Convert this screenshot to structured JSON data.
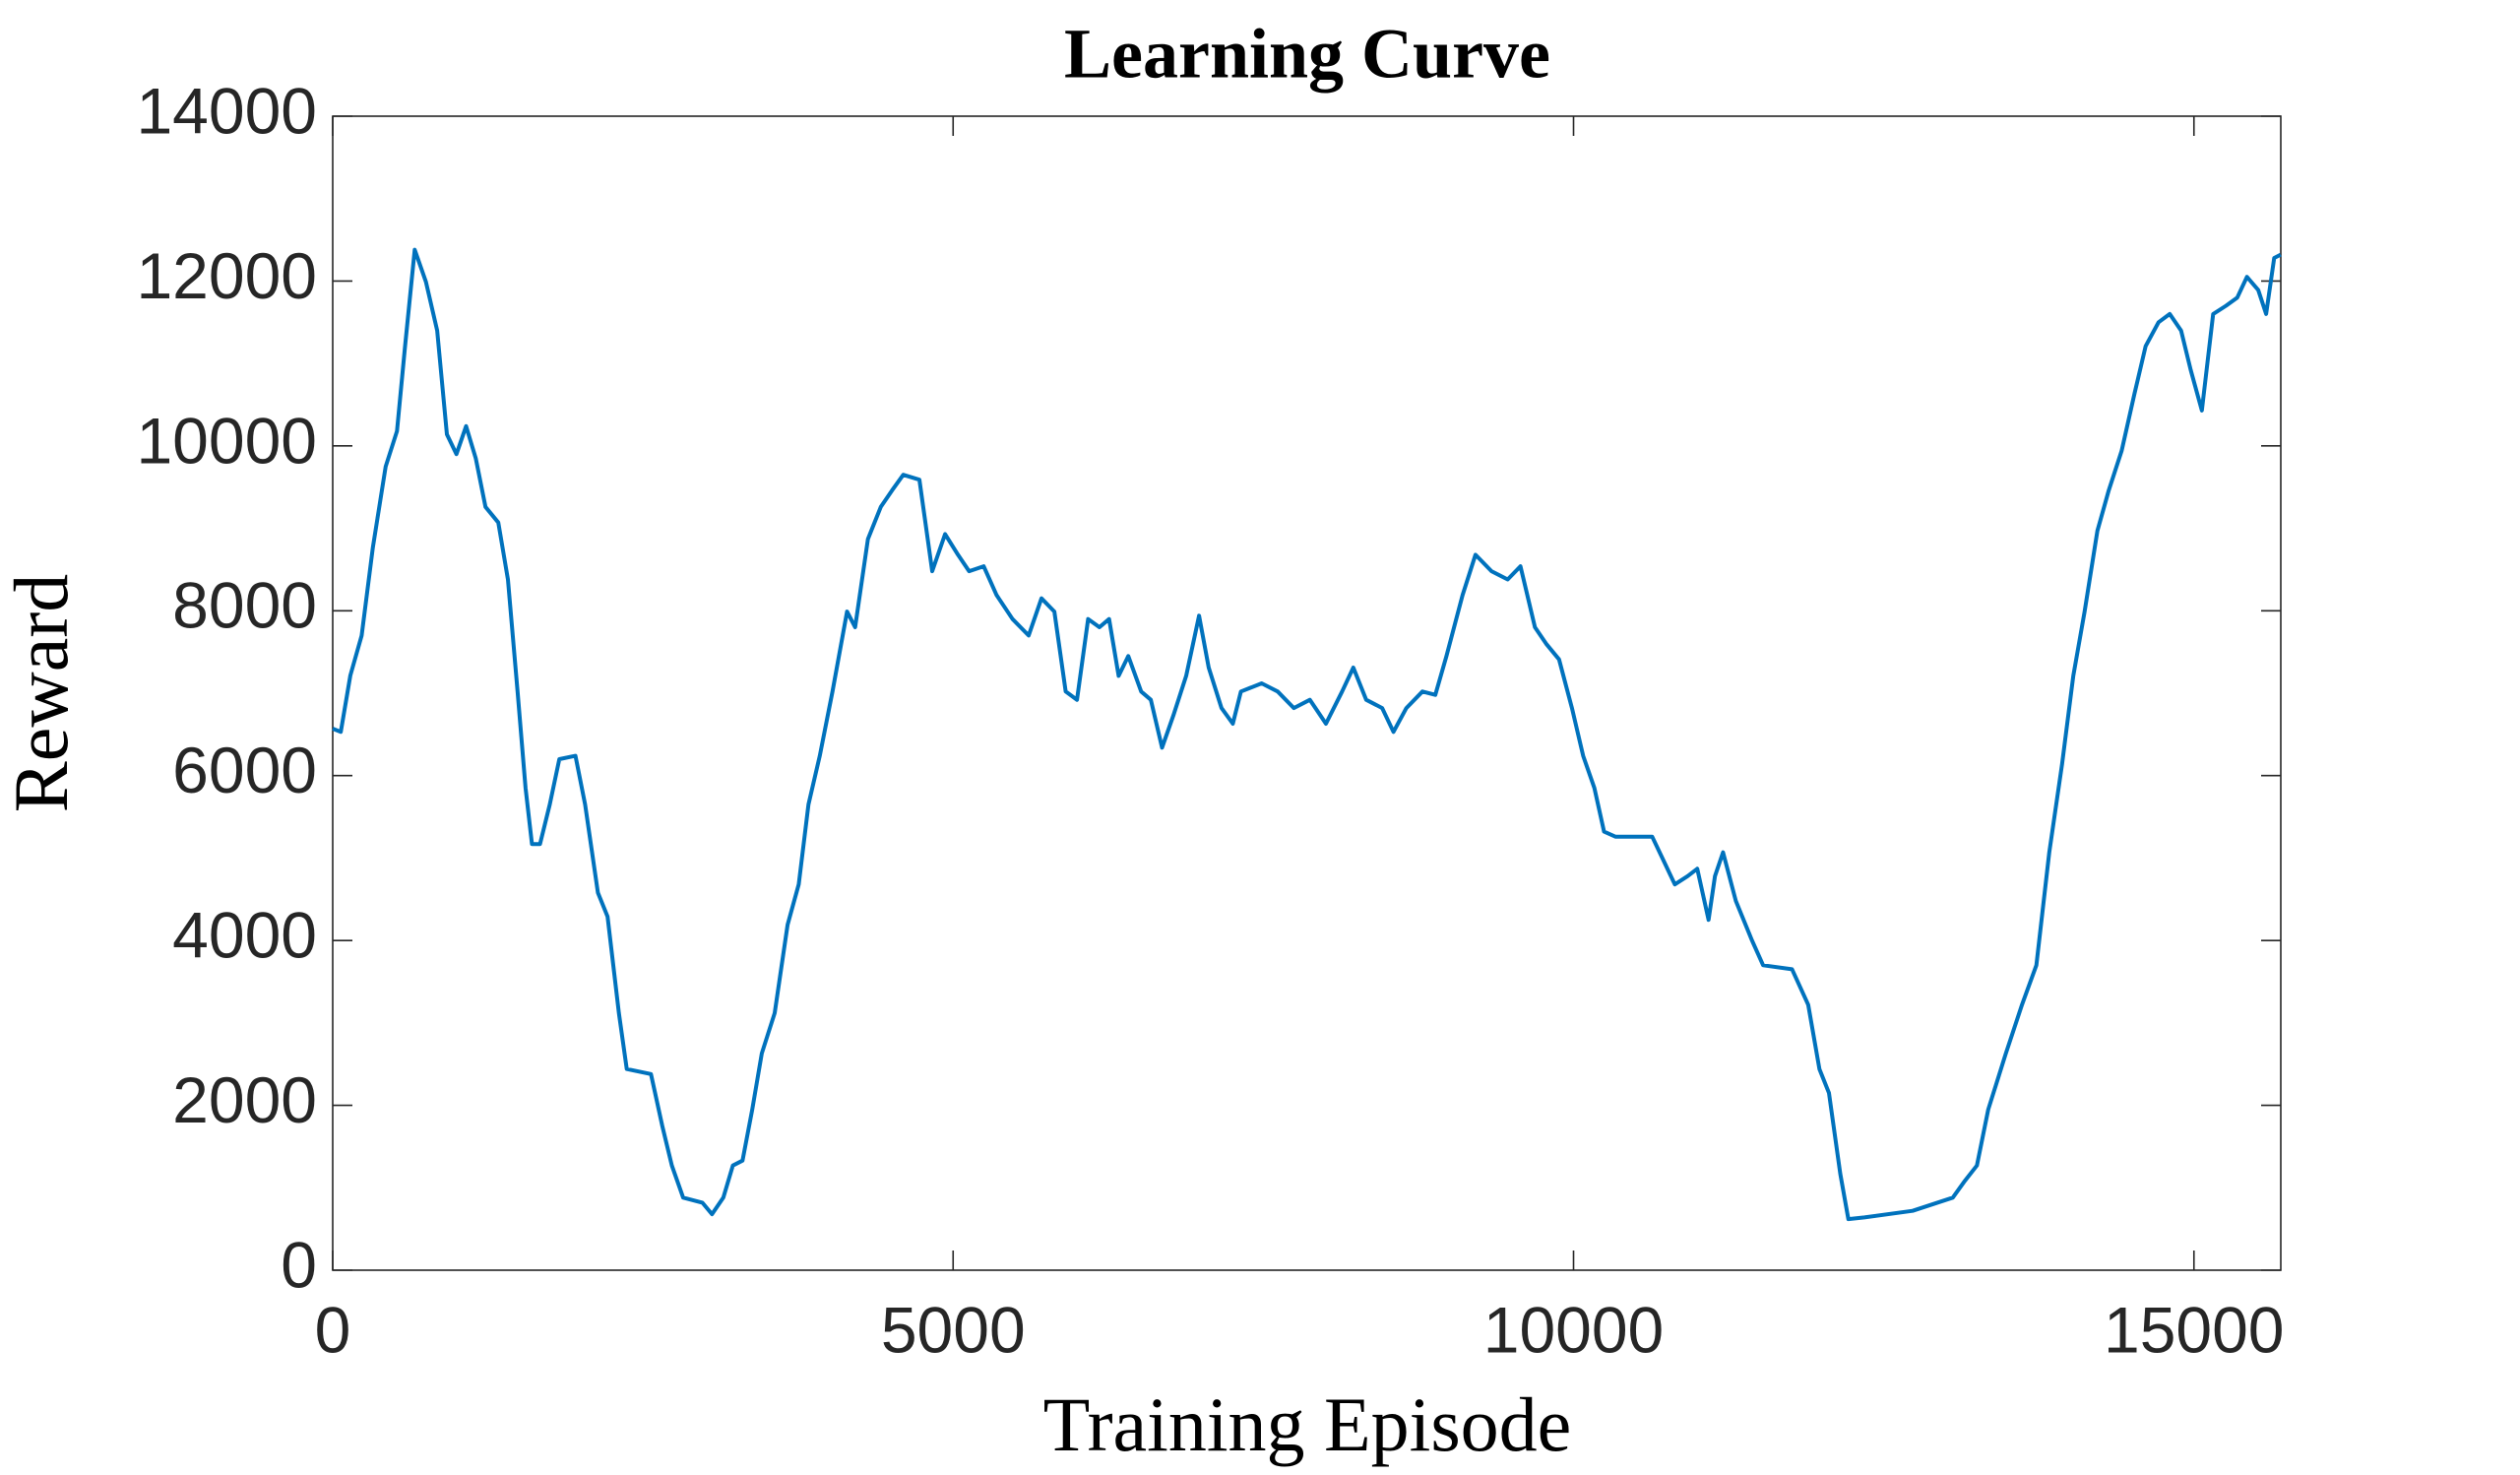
{
  "chart_data": {
    "type": "line",
    "title": "Learning Curve",
    "xlabel": "Training Episode",
    "ylabel": "Reward",
    "color": "#0072bd",
    "x": [
      0,
      65,
      142,
      233,
      324,
      427,
      518,
      583,
      661,
      751,
      842,
      920,
      997,
      1075,
      1153,
      1231,
      1334,
      1412,
      1490,
      1554,
      1606,
      1671,
      1749,
      1826,
      1956,
      2034,
      2137,
      2215,
      2306,
      2370,
      2565,
      2655,
      2733,
      2824,
      2979,
      3057,
      3148,
      3225,
      3303,
      3381,
      3458,
      3562,
      3666,
      3756,
      3834,
      3925,
      4028,
      4145,
      4210,
      4313,
      4417,
      4508,
      4598,
      4728,
      4831,
      4935,
      5039,
      5129,
      5246,
      5350,
      5479,
      5609,
      5712,
      5816,
      5907,
      5998,
      6088,
      6179,
      6257,
      6334,
      6412,
      6516,
      6593,
      6684,
      6775,
      6878,
      6982,
      7060,
      7163,
      7254,
      7319,
      7487,
      7616,
      7746,
      7875,
      8005,
      8135,
      8225,
      8329,
      8458,
      8549,
      8653,
      8782,
      8886,
      8976,
      9106,
      9210,
      9339,
      9469,
      9572,
      9689,
      9779,
      9883,
      9987,
      10078,
      10168,
      10246,
      10337,
      10466,
      10634,
      10725,
      10816,
      10919,
      10997,
      11088,
      11140,
      11205,
      11308,
      11438,
      11528,
      11761,
      11891,
      11982,
      12059,
      12150,
      12215,
      12344,
      12733,
      13057,
      13147,
      13251,
      13342,
      13484,
      13614,
      13730,
      13834,
      13937,
      14028,
      14119,
      14222,
      14313,
      14417,
      14520,
      14611,
      14715,
      14805,
      14896,
      14974,
      15064,
      15155,
      15259,
      15349,
      15427,
      15518,
      15582,
      15647,
      15699
    ],
    "values": [
      6570,
      6530,
      7215,
      7700,
      8770,
      9750,
      10180,
      11210,
      12380,
      11990,
      11400,
      10140,
      9900,
      10240,
      9850,
      9260,
      9070,
      8380,
      7020,
      5850,
      5170,
      5170,
      5650,
      6200,
      6240,
      5650,
      4580,
      4290,
      3120,
      2440,
      2380,
      1755,
      1270,
      880,
      820,
      680,
      880,
      1270,
      1330,
      1950,
      2630,
      3120,
      4190,
      4680,
      5650,
      6240,
      7020,
      7990,
      7800,
      8870,
      9260,
      9460,
      9650,
      9590,
      8480,
      8930,
      8680,
      8480,
      8540,
      8190,
      7900,
      7700,
      8150,
      7990,
      7020,
      6920,
      7900,
      7800,
      7900,
      7210,
      7450,
      7020,
      6920,
      6340,
      6730,
      7210,
      7940,
      7310,
      6820,
      6630,
      7020,
      7120,
      7020,
      6820,
      6920,
      6630,
      7020,
      7310,
      6920,
      6820,
      6530,
      6820,
      7020,
      6980,
      7450,
      8190,
      8680,
      8480,
      8380,
      8540,
      7800,
      7600,
      7410,
      6820,
      6240,
      5850,
      5320,
      5260,
      5260,
      5260,
      4970,
      4680,
      4780,
      4870,
      4250,
      4780,
      5070,
      4480,
      4000,
      3700,
      3650,
      3220,
      2440,
      2150,
      1170,
      620,
      640,
      720,
      880,
      1070,
      1270,
      1950,
      2630,
      3220,
      3700,
      5070,
      6140,
      7210,
      7990,
      8970,
      9460,
      9940,
      10630,
      11210,
      11500,
      11600,
      11400,
      10920,
      10430,
      11600,
      11700,
      11800,
      12050,
      11890,
      11600,
      12280,
      12320
    ],
    "xlim": [
      0,
      15700
    ],
    "xticks": [
      0,
      5000,
      10000,
      15000
    ],
    "ylim": [
      0,
      14000
    ],
    "yticks": [
      0,
      2000,
      4000,
      6000,
      8000,
      10000,
      12000,
      14000
    ]
  }
}
